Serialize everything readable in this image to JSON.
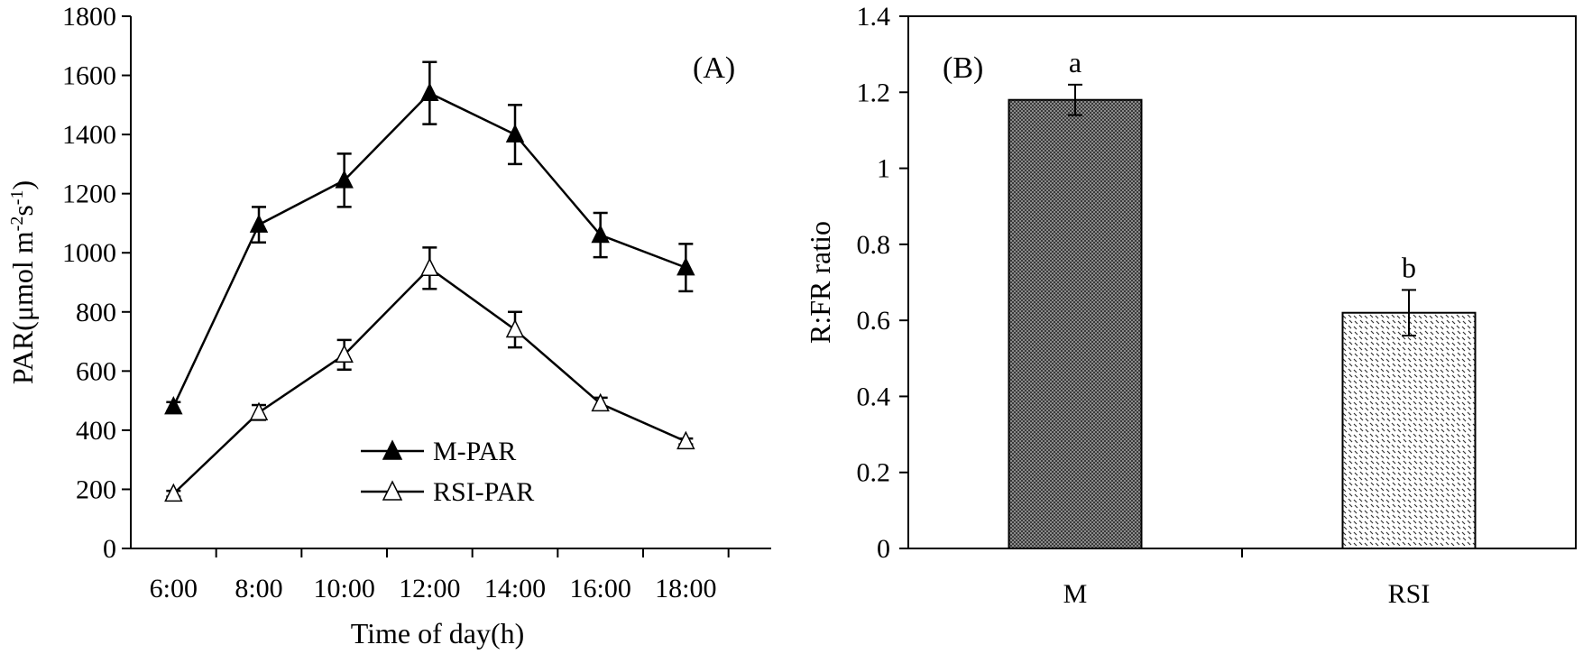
{
  "chart_data": [
    {
      "panel": "A",
      "type": "line",
      "panel_label": "(A)",
      "xlabel": "Time of day(h)",
      "ylabel_main": "PAR(μmol m",
      "ylabel_sup1": "-2",
      "ylabel_mid": "s",
      "ylabel_sup2": "-1",
      "ylabel_end": ")",
      "categories": [
        "6:00",
        "8:00",
        "10:00",
        "12:00",
        "14:00",
        "16:00",
        "18:00"
      ],
      "ylim": [
        0,
        1800
      ],
      "yticks": [
        0,
        200,
        400,
        600,
        800,
        1000,
        1200,
        1400,
        1600,
        1800
      ],
      "ytick_labels": [
        "0",
        "200",
        "400",
        "600",
        "800",
        "1000",
        "1200",
        "1400",
        "1600",
        "1800"
      ],
      "legend_position": "bottom-center",
      "series": [
        {
          "name": "M-PAR",
          "marker": "filled-triangle",
          "values": [
            480,
            1095,
            1245,
            1540,
            1400,
            1060,
            950
          ],
          "errors": [
            15,
            60,
            90,
            105,
            100,
            75,
            80
          ]
        },
        {
          "name": "RSI-PAR",
          "marker": "open-triangle",
          "values": [
            185,
            460,
            655,
            948,
            740,
            490,
            362
          ],
          "errors": [
            10,
            25,
            50,
            70,
            60,
            20,
            10
          ]
        }
      ]
    },
    {
      "panel": "B",
      "type": "bar",
      "panel_label": "(B)",
      "xlabel": "",
      "ylabel": "R:FR ratio",
      "categories": [
        "M",
        "RSI"
      ],
      "values": [
        1.18,
        0.62
      ],
      "errors": [
        0.04,
        0.06
      ],
      "significance": [
        "a",
        "b"
      ],
      "patterns": [
        "dense-crosshatch",
        "sparse-check"
      ],
      "ylim": [
        0,
        1.4
      ],
      "yticks": [
        0,
        0.2,
        0.4,
        0.6,
        0.8,
        1.0,
        1.2,
        1.4
      ],
      "ytick_labels": [
        "0",
        "0.2",
        "0.4",
        "0.6",
        "0.8",
        "1",
        "1.2",
        "1.4"
      ]
    }
  ]
}
